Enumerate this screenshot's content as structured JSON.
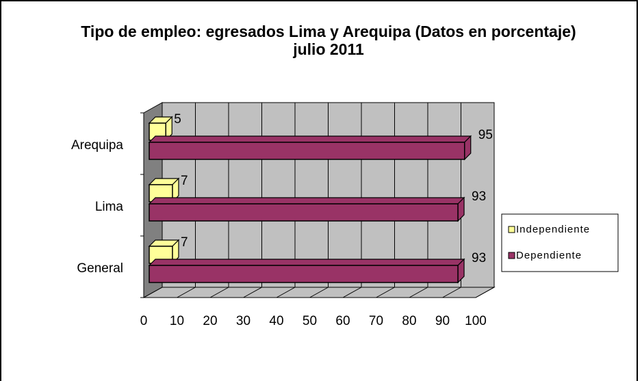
{
  "chart_data": {
    "type": "bar",
    "orientation": "horizontal",
    "title": "Tipo de empleo: egresados Lima y Arequipa (Datos en porcentaje)",
    "subtitle": "julio 2011",
    "categories": [
      "General",
      "Lima",
      "Arequipa"
    ],
    "series": [
      {
        "name": "Independiente",
        "color": "#ffff99",
        "values": [
          7,
          7,
          5
        ]
      },
      {
        "name": "Dependiente",
        "color": "#993366",
        "values": [
          93,
          93,
          95
        ]
      }
    ],
    "xlim": [
      0,
      100
    ],
    "xticks": [
      0,
      10,
      20,
      30,
      40,
      50,
      60,
      70,
      80,
      90,
      100
    ],
    "grid": true,
    "legend": "right"
  }
}
